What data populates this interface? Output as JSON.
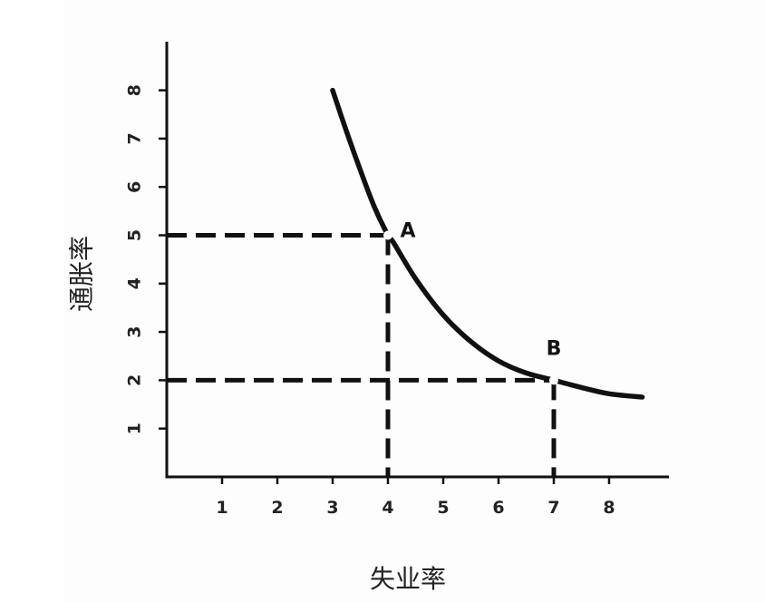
{
  "chart_data": {
    "type": "line",
    "title": "",
    "xlabel": "失业率",
    "ylabel": "通胀率",
    "xlim": [
      0,
      8.6
    ],
    "ylim": [
      0,
      8.6
    ],
    "x_ticks": [
      "1",
      "2",
      "3",
      "4",
      "5",
      "6",
      "7",
      "8"
    ],
    "y_ticks": [
      "1",
      "2",
      "3",
      "4",
      "5",
      "6",
      "7",
      "8"
    ],
    "grid": false,
    "series": [
      {
        "x": [
          3.0,
          3.25,
          3.5,
          3.75,
          4.0,
          4.1,
          4.5,
          5.0,
          5.5,
          6.0,
          6.5,
          7.0,
          7.5,
          8.0,
          8.6
        ],
        "values": [
          8.0,
          7.15,
          6.35,
          5.6,
          5.0,
          4.85,
          4.1,
          3.35,
          2.8,
          2.4,
          2.15,
          2.0,
          1.85,
          1.72,
          1.65
        ],
        "color": "#111111"
      }
    ],
    "annotations": [
      {
        "label": "A",
        "x": 4,
        "y": 5
      },
      {
        "label": "B",
        "x": 7,
        "y": 2
      }
    ]
  }
}
